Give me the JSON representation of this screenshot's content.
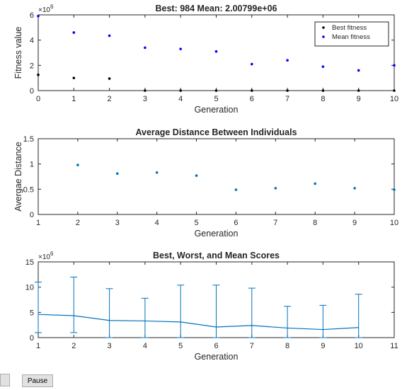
{
  "chart_data": [
    {
      "type": "scatter",
      "title": "Best: 984 Mean: 2.00799e+06",
      "xlabel": "Generation",
      "ylabel": "Fitness value",
      "exponent_label": "×10^6",
      "xlim": [
        0,
        10
      ],
      "ylim": [
        0,
        6
      ],
      "xticks": [
        "0",
        "1",
        "2",
        "3",
        "4",
        "5",
        "6",
        "7",
        "8",
        "9",
        "10"
      ],
      "yticks": [
        "0",
        "2",
        "4",
        "6"
      ],
      "legend": "top-right",
      "series": [
        {
          "name": "Best fitness",
          "color": "#000000",
          "x": [
            0,
            1,
            2,
            3,
            4,
            5,
            6,
            7,
            8,
            9,
            10
          ],
          "y": [
            1.25,
            1.0,
            0.95,
            0.0,
            0.0,
            0.0,
            0.0,
            0.0,
            0.0,
            0.0,
            0.0
          ]
        },
        {
          "name": "Mean fitness",
          "color": "#0000ff",
          "x": [
            0,
            1,
            2,
            3,
            4,
            5,
            6,
            7,
            8,
            9,
            10
          ],
          "y": [
            5.9,
            4.6,
            4.35,
            3.4,
            3.3,
            3.1,
            2.1,
            2.4,
            1.9,
            1.6,
            2.0
          ]
        }
      ]
    },
    {
      "type": "scatter",
      "title": "Average Distance Between Individuals",
      "xlabel": "Generation",
      "ylabel": "Avergae Distance",
      "xlim": [
        1,
        10
      ],
      "ylim": [
        0,
        1.5
      ],
      "xticks": [
        "1",
        "2",
        "3",
        "4",
        "5",
        "6",
        "7",
        "8",
        "9",
        "10"
      ],
      "yticks": [
        "0",
        "0.5",
        "1",
        "1.5"
      ],
      "series": [
        {
          "color": "#0072bd",
          "x": [
            2,
            3,
            4,
            5,
            6,
            7,
            8,
            9,
            10
          ],
          "y": [
            0.98,
            0.81,
            0.83,
            0.77,
            0.49,
            0.52,
            0.61,
            0.52,
            0.49
          ]
        }
      ]
    },
    {
      "type": "line",
      "title": "Best, Worst, and Mean Scores",
      "xlabel": "Generation",
      "exponent_label": "×10^6",
      "xlim": [
        1,
        11
      ],
      "ylim": [
        0,
        15
      ],
      "xticks": [
        "1",
        "2",
        "3",
        "4",
        "5",
        "6",
        "7",
        "8",
        "9",
        "10",
        "11"
      ],
      "yticks": [
        "0",
        "5",
        "10",
        "15"
      ],
      "series": [
        {
          "name": "Mean",
          "color": "#0072bd",
          "x": [
            1,
            2,
            3,
            4,
            5,
            6,
            7,
            8,
            9,
            10
          ],
          "y": [
            4.6,
            4.35,
            3.4,
            3.3,
            3.1,
            2.1,
            2.4,
            1.9,
            1.6,
            2.0
          ]
        }
      ],
      "error_bars": {
        "color": "#0072bd",
        "x": [
          1,
          2,
          3,
          4,
          5,
          6,
          7,
          8,
          9,
          10
        ],
        "low": [
          1.0,
          1.0,
          0,
          0,
          0,
          0,
          0,
          0,
          0,
          0
        ],
        "high": [
          11.0,
          12.0,
          9.7,
          7.8,
          10.4,
          10.4,
          9.8,
          6.2,
          6.4,
          8.6
        ]
      }
    }
  ],
  "controls": {
    "pause_label": "Pause"
  }
}
